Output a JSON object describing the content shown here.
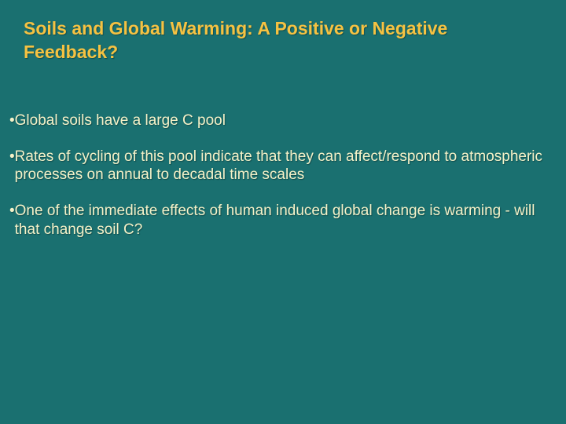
{
  "slide": {
    "background_color": "#1a7070",
    "title": {
      "text": "Soils and Global Warming: A Positive or Negative Feedback?",
      "color": "#f5c242",
      "font_size": 23,
      "font_weight": "bold"
    },
    "body": {
      "color": "#f5f2c8",
      "font_size": 19,
      "bullet_char": "•",
      "items": [
        "Global soils have a large C pool",
        "Rates of cycling of this pool indicate that they can affect/respond to atmospheric processes on annual to decadal time scales",
        "One of the immediate effects of human induced global change is warming - will that change soil C?"
      ]
    }
  }
}
